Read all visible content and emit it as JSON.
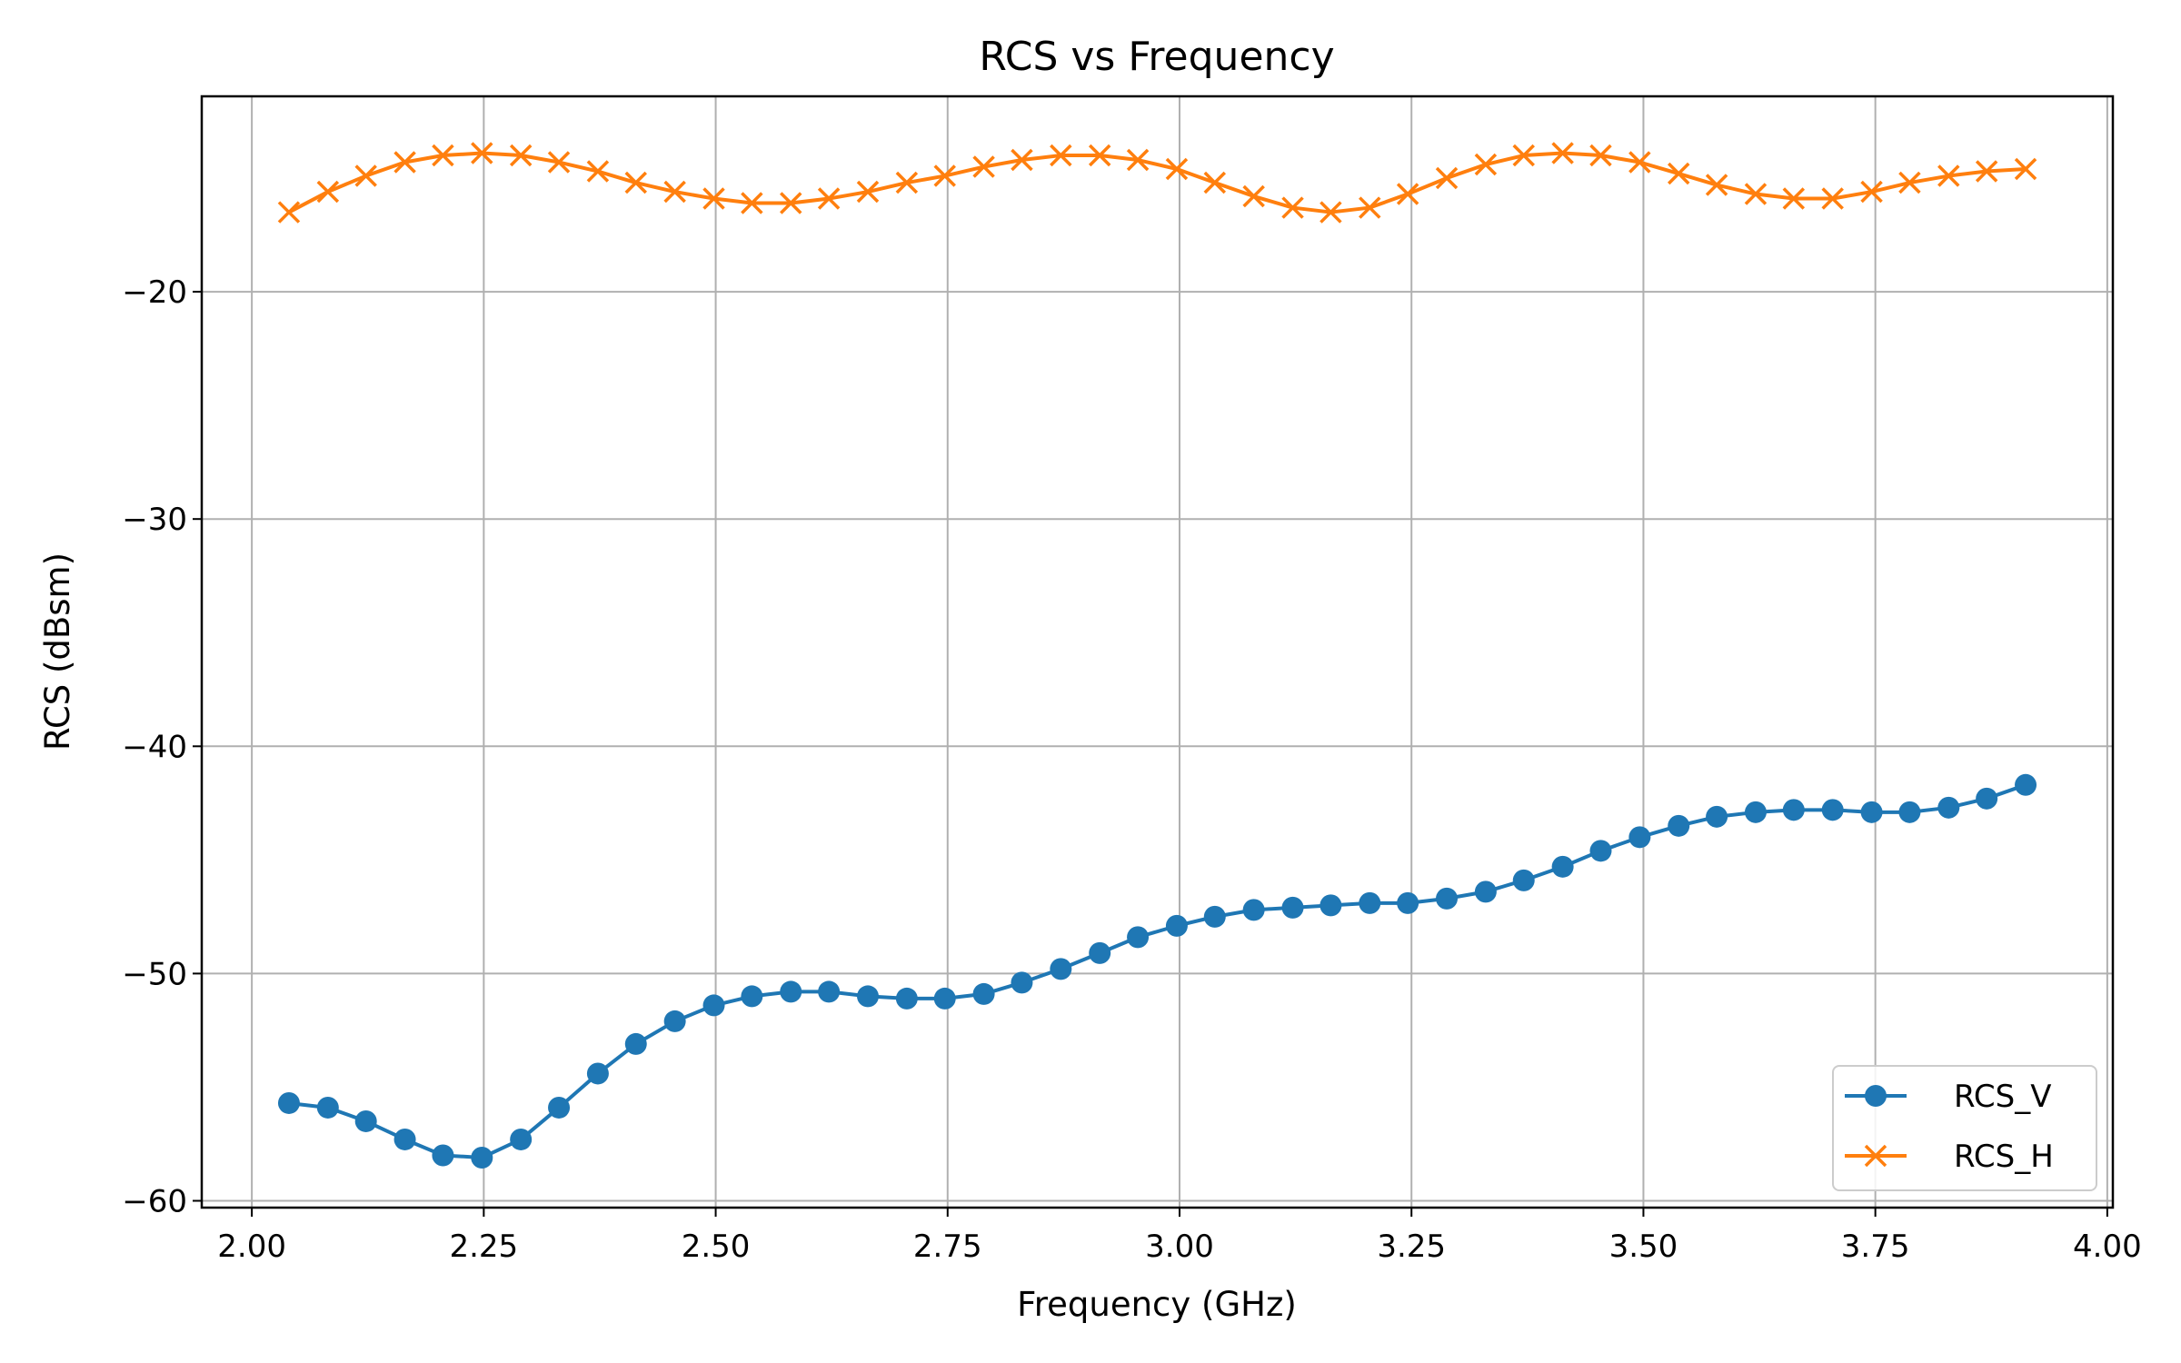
{
  "chart_data": {
    "type": "line",
    "title": "RCS vs Frequency",
    "xlabel": "Frequency (GHz)",
    "ylabel": "RCS (dBsm)",
    "xlim": [
      1.946,
      4.006
    ],
    "ylim": [
      -60.3,
      -11.4
    ],
    "xticks": [
      2.0,
      2.25,
      2.5,
      2.75,
      3.0,
      3.25,
      3.5,
      3.75,
      4.0
    ],
    "xtick_labels": [
      "2.00",
      "2.25",
      "2.50",
      "2.75",
      "3.00",
      "3.25",
      "3.50",
      "3.75",
      "4.00"
    ],
    "yticks": [
      -60,
      -50,
      -40,
      -30,
      -20
    ],
    "ytick_labels": [
      "−60",
      "−50",
      "−40",
      "−30",
      "−20"
    ],
    "grid": true,
    "legend_position": "lower right",
    "x": [
      2.04,
      2.082,
      2.123,
      2.165,
      2.206,
      2.248,
      2.29,
      2.331,
      2.373,
      2.414,
      2.456,
      2.498,
      2.539,
      2.581,
      2.622,
      2.664,
      2.706,
      2.747,
      2.789,
      2.83,
      2.872,
      2.914,
      2.955,
      2.997,
      3.038,
      3.08,
      3.122,
      3.163,
      3.205,
      3.246,
      3.288,
      3.33,
      3.371,
      3.413,
      3.454,
      3.496,
      3.538,
      3.579,
      3.621,
      3.662,
      3.704,
      3.746,
      3.787,
      3.829,
      3.87,
      3.912
    ],
    "series": [
      {
        "name": "RCS_V",
        "color": "#1f77b4",
        "marker": "circle",
        "values": [
          -55.7,
          -55.9,
          -56.5,
          -57.3,
          -58.0,
          -58.1,
          -57.3,
          -55.9,
          -54.4,
          -53.1,
          -52.1,
          -51.4,
          -51.0,
          -50.8,
          -50.8,
          -51.0,
          -51.1,
          -51.1,
          -50.9,
          -50.4,
          -49.8,
          -49.1,
          -48.4,
          -47.9,
          -47.5,
          -47.2,
          -47.1,
          -47.0,
          -46.9,
          -46.9,
          -46.7,
          -46.4,
          -45.9,
          -45.3,
          -44.6,
          -44.0,
          -43.5,
          -43.1,
          -42.9,
          -42.8,
          -42.8,
          -42.9,
          -42.9,
          -42.7,
          -42.3,
          -41.7
        ]
      },
      {
        "name": "RCS_H",
        "color": "#ff7f0e",
        "marker": "x",
        "values": [
          -16.5,
          -15.6,
          -14.9,
          -14.3,
          -14.0,
          -13.9,
          -14.0,
          -14.3,
          -14.7,
          -15.2,
          -15.6,
          -15.9,
          -16.1,
          -16.1,
          -15.9,
          -15.6,
          -15.2,
          -14.9,
          -14.5,
          -14.2,
          -14.0,
          -14.0,
          -14.2,
          -14.6,
          -15.2,
          -15.8,
          -16.3,
          -16.5,
          -16.3,
          -15.7,
          -15.0,
          -14.4,
          -14.0,
          -13.9,
          -14.0,
          -14.3,
          -14.8,
          -15.3,
          -15.7,
          -15.9,
          -15.9,
          -15.6,
          -15.2,
          -14.9,
          -14.7,
          -14.6
        ]
      }
    ]
  }
}
